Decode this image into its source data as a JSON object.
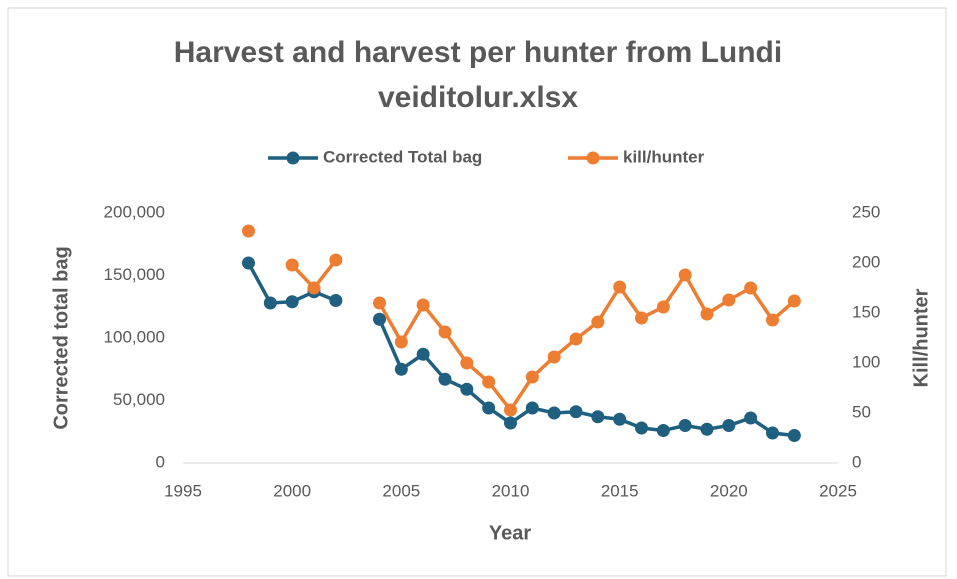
{
  "chart_data": {
    "type": "line",
    "title": "Harvest and harvest per hunter from Lundi veiditolur.xlsx",
    "x_label": "Year",
    "y_label": "Corrected total bag",
    "y2_label": "Kill/hunter",
    "x": [
      1998,
      1999,
      2000,
      2001,
      2002,
      2003,
      2004,
      2005,
      2006,
      2007,
      2008,
      2009,
      2010,
      2011,
      2012,
      2013,
      2014,
      2015,
      2016,
      2017,
      2018,
      2019,
      2020,
      2021,
      2022,
      2023
    ],
    "series": [
      {
        "name": "Corrected Total bag",
        "color": "#1f5f7f",
        "axis": "y",
        "values": [
          160000,
          128000,
          129000,
          137000,
          130000,
          null,
          115000,
          75000,
          87000,
          67000,
          59000,
          44000,
          32000,
          44000,
          40000,
          41000,
          37000,
          35000,
          28000,
          26000,
          30000,
          27000,
          30000,
          36000,
          24000,
          22000
        ]
      },
      {
        "name": "kill/hunter",
        "color": "#ed7d31",
        "axis": "y2",
        "values": [
          232,
          null,
          198,
          175,
          203,
          null,
          160,
          121,
          158,
          131,
          100,
          81,
          53,
          86,
          106,
          124,
          141,
          176,
          145,
          156,
          188,
          149,
          163,
          175,
          143,
          162
        ]
      }
    ],
    "xlim": [
      1995,
      2025
    ],
    "xticks": [
      1995,
      2000,
      2005,
      2010,
      2015,
      2020,
      2025
    ],
    "ylim": [
      0,
      200000
    ],
    "yticks": [
      0,
      {
        "value": 50000,
        "label": "50,000"
      },
      {
        "value": 100000,
        "label": "100,000"
      },
      {
        "value": 150000,
        "label": "150,000"
      },
      {
        "value": 200000,
        "label": "200,000"
      }
    ],
    "y2lim": [
      0,
      250
    ],
    "y2ticks": [
      0,
      50,
      100,
      150,
      200,
      250
    ],
    "grid": false,
    "legend": "top"
  }
}
